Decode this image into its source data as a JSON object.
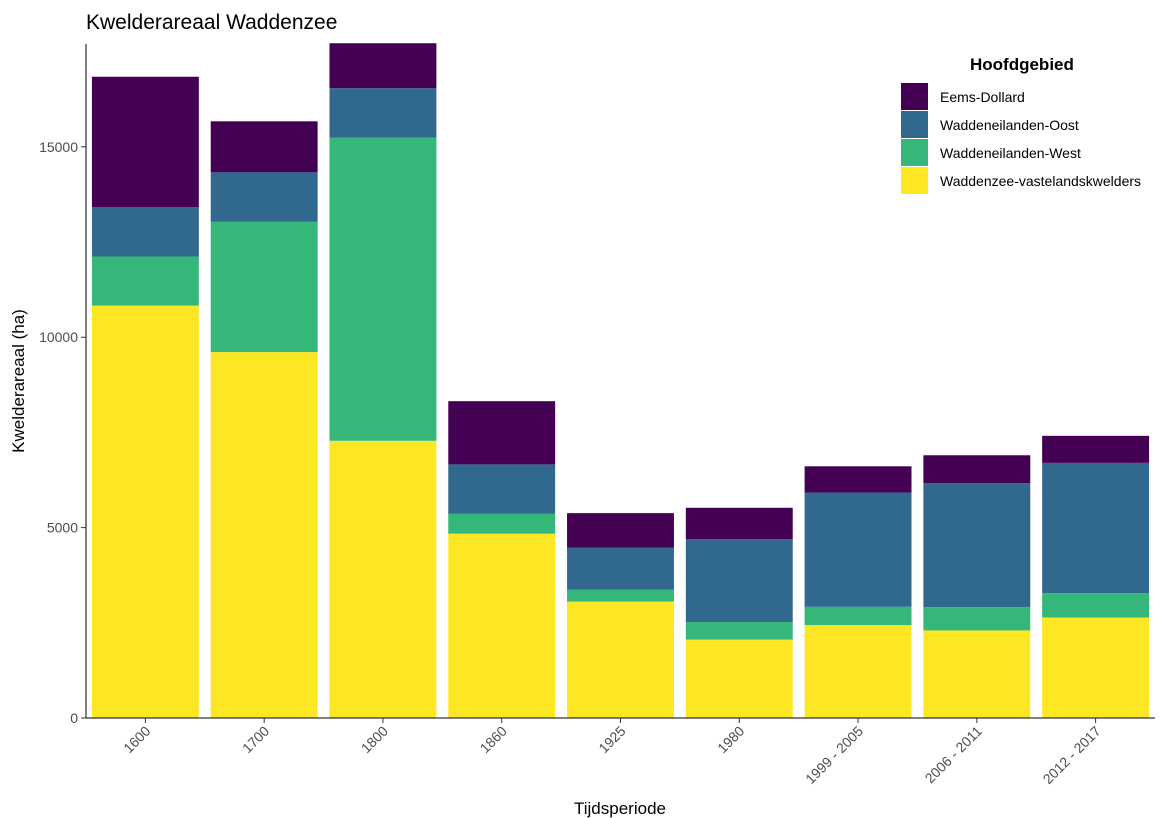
{
  "chart_data": {
    "type": "bar",
    "stacked": true,
    "title": "Kwelderareaal Waddenzee",
    "xlabel": "Tijdsperiode",
    "ylabel": "Kwelderareaal (ha)",
    "ylim": [
      0,
      17700
    ],
    "yticks": [
      0,
      5000,
      10000,
      15000
    ],
    "grid": false,
    "legend": {
      "title": "Hoofdgebied",
      "position": "top-right"
    },
    "categories": [
      "1600",
      "1700",
      "1800",
      "1860",
      "1925",
      "1980",
      "1999 - 2005",
      "2006 - 2011",
      "2012 - 2017"
    ],
    "series": [
      {
        "name": "Waddenzee-vastelandskwelders",
        "color": "#fde725",
        "values": [
          10830,
          9610,
          7280,
          4840,
          3060,
          2060,
          2440,
          2300,
          2640
        ]
      },
      {
        "name": "Waddeneilanden-West",
        "color": "#35b779",
        "values": [
          1290,
          3420,
          7960,
          520,
          310,
          460,
          480,
          610,
          640
        ]
      },
      {
        "name": "Waddeneilanden-Oost",
        "color": "#31688e",
        "values": [
          1300,
          1300,
          1300,
          1300,
          1100,
          2180,
          3000,
          3260,
          3420
        ]
      },
      {
        "name": "Eems-Dollard",
        "color": "#440154",
        "values": [
          3420,
          1340,
          1180,
          1660,
          910,
          820,
          690,
          730,
          710
        ]
      }
    ]
  }
}
